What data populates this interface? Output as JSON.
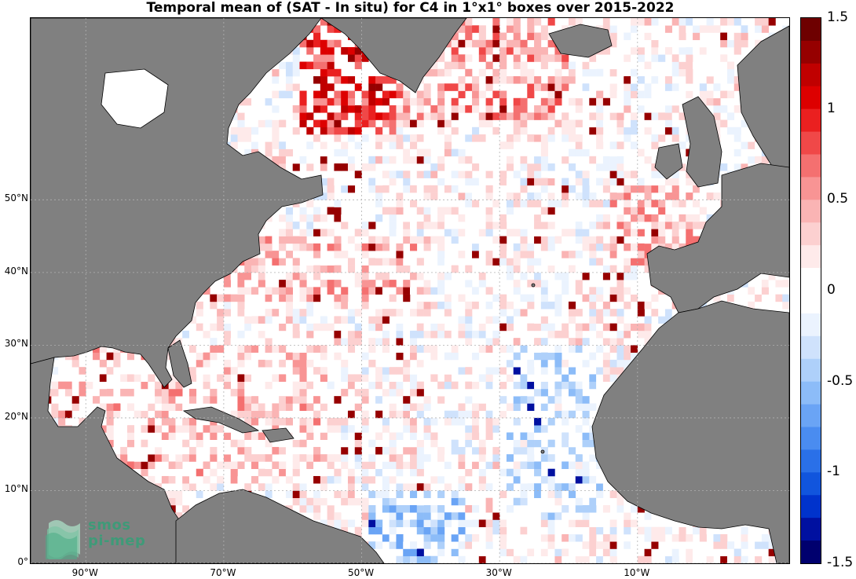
{
  "title": "Temporal mean of (SAT - In situ) for C4 in 1°x1° boxes over 2015-2022",
  "map": {
    "lon_range": [
      -98,
      12
    ],
    "lat_range": [
      0,
      75
    ],
    "lat_ticks": [
      {
        "value": 50,
        "label": "50°N"
      },
      {
        "value": 40,
        "label": "40°N"
      },
      {
        "value": 30,
        "label": "30°N"
      },
      {
        "value": 20,
        "label": "20°N"
      },
      {
        "value": 10,
        "label": "10°N"
      },
      {
        "value": 0,
        "label": "0°"
      }
    ],
    "lon_ticks": [
      {
        "value": -90,
        "label": "90°W"
      },
      {
        "value": -70,
        "label": "70°W"
      },
      {
        "value": -50,
        "label": "50°W"
      },
      {
        "value": -30,
        "label": "30°W"
      },
      {
        "value": -10,
        "label": "10°W"
      }
    ],
    "land_color": "#808080",
    "grid": true
  },
  "colorbar": {
    "range": [
      -1.5,
      1.5
    ],
    "ticks": [
      {
        "value": 1.5,
        "label": "1.5"
      },
      {
        "value": 1,
        "label": "1"
      },
      {
        "value": 0.5,
        "label": "0.5"
      },
      {
        "value": 0,
        "label": "0"
      },
      {
        "value": -0.5,
        "label": "-0.5"
      },
      {
        "value": -1,
        "label": "-1"
      },
      {
        "value": -1.5,
        "label": "-1.5"
      }
    ],
    "colors": [
      "#00006e",
      "#0010a0",
      "#0033cc",
      "#1155dd",
      "#2a70e8",
      "#4a8cf0",
      "#6aa4f5",
      "#8cbcf8",
      "#aed0fa",
      "#cfe2fc",
      "#ebf3fe",
      "#ffffff",
      "#ffffff",
      "#feeaea",
      "#fcd0d0",
      "#fab4b4",
      "#f89494",
      "#f47070",
      "#f04848",
      "#ea2020",
      "#dd0000",
      "#c00000",
      "#960000",
      "#6e0000"
    ]
  },
  "logo": {
    "line1": "smos",
    "line2": "pi-mep"
  }
}
